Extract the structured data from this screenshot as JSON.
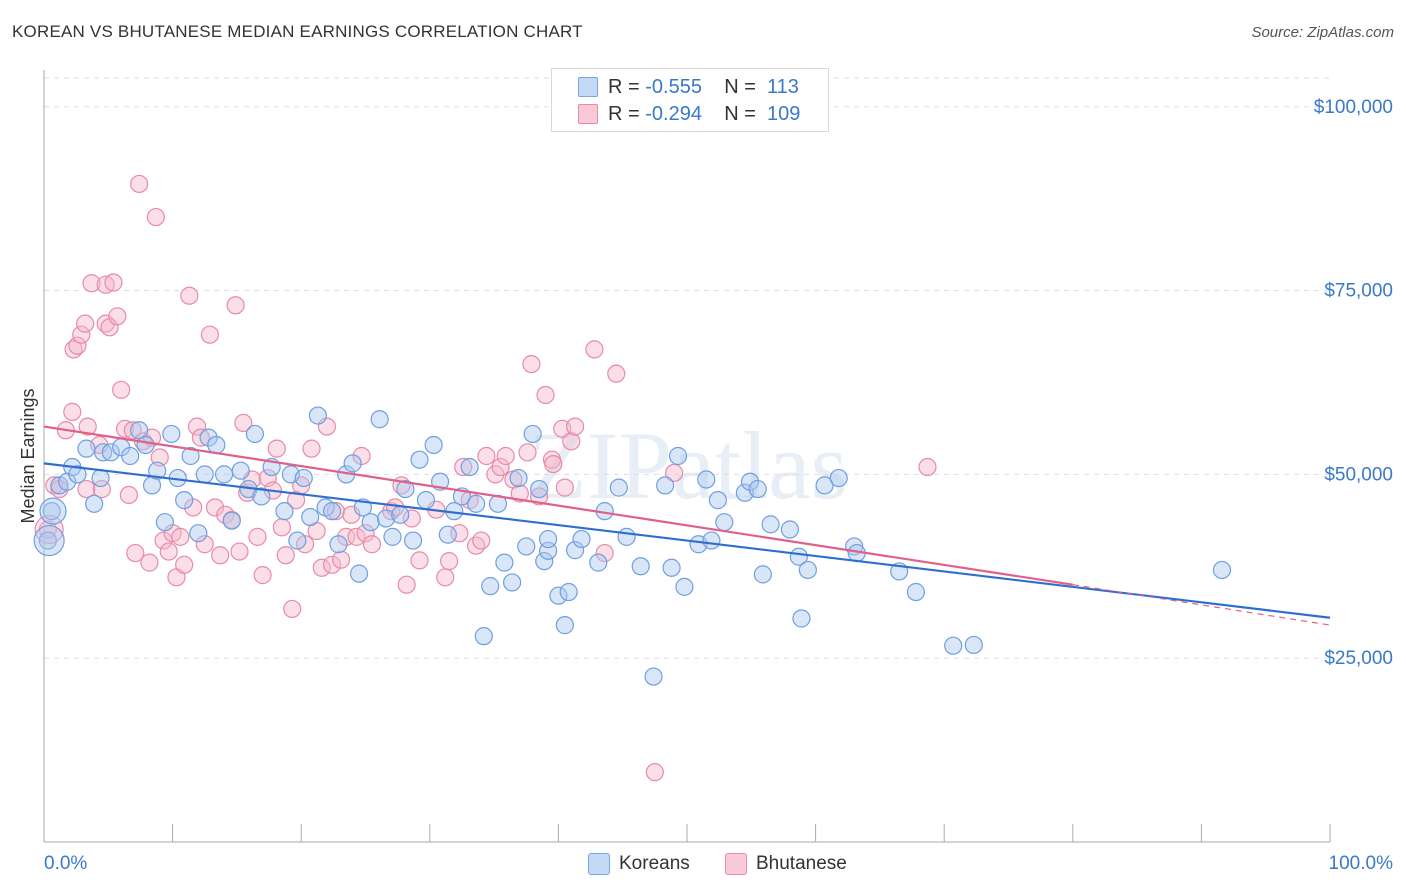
{
  "header": {
    "title": "KOREAN VS BHUTANESE MEDIAN EARNINGS CORRELATION CHART",
    "source": "Source: ZipAtlas.com"
  },
  "watermark": "ZIPatlas",
  "colors": {
    "koreans_fill": "#aac8f0",
    "koreans_stroke": "#6f9fe0",
    "koreans_line": "#2c6fd1",
    "bhutanese_fill": "#f5b8cc",
    "bhutanese_stroke": "#e88aa8",
    "bhutanese_line": "#e0608a",
    "axis_text": "#3a78c9",
    "grid": "#dddddd"
  },
  "legend": {
    "rows": [
      {
        "r_label": "R =",
        "r_value": "-0.555",
        "n_label": "N =",
        "n_value": "113"
      },
      {
        "r_label": "R =",
        "r_value": "-0.294",
        "n_label": "N =",
        "n_value": "109"
      }
    ]
  },
  "bottom_legend": {
    "koreans": "Koreans",
    "bhutanese": "Bhutanese"
  },
  "chart_data": {
    "type": "scatter",
    "title": "KOREAN VS BHUTANESE MEDIAN EARNINGS CORRELATION CHART",
    "xlabel": "",
    "ylabel": "Median Earnings",
    "xlim": [
      0,
      100
    ],
    "ylim": [
      0,
      105000
    ],
    "x_tick_labels": [
      "0.0%",
      "100.0%"
    ],
    "y_ticks": [
      25000,
      50000,
      75000,
      100000
    ],
    "y_tick_labels": [
      "$25,000",
      "$50,000",
      "$75,000",
      "$100,000"
    ],
    "grid": true,
    "legend_position": "top-center",
    "series": [
      {
        "name": "Koreans",
        "r": -0.555,
        "n": 113,
        "trend": {
          "x": [
            0,
            100
          ],
          "y": [
            51500,
            30500
          ]
        },
        "points": [
          [
            0.3,
            41000
          ],
          [
            0.6,
            45000
          ],
          [
            1.2,
            48500
          ],
          [
            1.8,
            49000
          ],
          [
            2.2,
            51000
          ],
          [
            2.6,
            50000
          ],
          [
            3.3,
            53500
          ],
          [
            3.9,
            46000
          ],
          [
            4.4,
            49500
          ],
          [
            4.6,
            53000
          ],
          [
            5.2,
            53000
          ],
          [
            6.0,
            53700
          ],
          [
            6.7,
            52500
          ],
          [
            7.4,
            56000
          ],
          [
            7.9,
            54000
          ],
          [
            8.4,
            48500
          ],
          [
            8.8,
            50500
          ],
          [
            9.4,
            43500
          ],
          [
            9.9,
            55500
          ],
          [
            10.4,
            49500
          ],
          [
            10.9,
            46500
          ],
          [
            11.4,
            52500
          ],
          [
            12.0,
            42000
          ],
          [
            12.5,
            50000
          ],
          [
            12.8,
            55000
          ],
          [
            13.4,
            54000
          ],
          [
            14.0,
            50000
          ],
          [
            14.6,
            43700
          ],
          [
            15.3,
            50500
          ],
          [
            15.9,
            48000
          ],
          [
            16.4,
            55500
          ],
          [
            16.9,
            47000
          ],
          [
            17.7,
            51000
          ],
          [
            18.7,
            45000
          ],
          [
            19.2,
            50000
          ],
          [
            19.7,
            41000
          ],
          [
            20.2,
            49500
          ],
          [
            20.7,
            44200
          ],
          [
            21.3,
            58000
          ],
          [
            21.9,
            45500
          ],
          [
            22.4,
            45000
          ],
          [
            22.9,
            40500
          ],
          [
            23.5,
            50000
          ],
          [
            24.0,
            51500
          ],
          [
            24.5,
            36500
          ],
          [
            24.8,
            45500
          ],
          [
            25.4,
            43500
          ],
          [
            26.1,
            57500
          ],
          [
            26.6,
            44000
          ],
          [
            27.1,
            41500
          ],
          [
            27.7,
            44500
          ],
          [
            28.1,
            48000
          ],
          [
            28.7,
            41000
          ],
          [
            29.2,
            52000
          ],
          [
            29.7,
            46500
          ],
          [
            30.3,
            54000
          ],
          [
            30.8,
            49000
          ],
          [
            31.4,
            41800
          ],
          [
            31.9,
            45000
          ],
          [
            32.5,
            47000
          ],
          [
            33.1,
            51000
          ],
          [
            33.6,
            46000
          ],
          [
            34.2,
            28000
          ],
          [
            34.7,
            34800
          ],
          [
            35.3,
            46000
          ],
          [
            35.8,
            38000
          ],
          [
            36.4,
            35300
          ],
          [
            36.9,
            49500
          ],
          [
            37.5,
            40200
          ],
          [
            38.0,
            55500
          ],
          [
            38.5,
            48000
          ],
          [
            38.9,
            38200
          ],
          [
            39.2,
            39600
          ],
          [
            39.2,
            41200
          ],
          [
            40.0,
            33500
          ],
          [
            40.5,
            29500
          ],
          [
            40.8,
            34000
          ],
          [
            41.3,
            39700
          ],
          [
            41.8,
            41200
          ],
          [
            43.1,
            38000
          ],
          [
            43.6,
            45000
          ],
          [
            44.7,
            48200
          ],
          [
            45.3,
            41500
          ],
          [
            46.4,
            37500
          ],
          [
            47.4,
            22500
          ],
          [
            48.3,
            48500
          ],
          [
            48.8,
            37300
          ],
          [
            49.3,
            52500
          ],
          [
            49.8,
            34700
          ],
          [
            50.9,
            40500
          ],
          [
            51.5,
            49300
          ],
          [
            51.9,
            41000
          ],
          [
            52.4,
            46500
          ],
          [
            52.9,
            43500
          ],
          [
            54.5,
            47500
          ],
          [
            54.9,
            49000
          ],
          [
            55.5,
            48000
          ],
          [
            55.9,
            36400
          ],
          [
            56.5,
            43200
          ],
          [
            58.0,
            42500
          ],
          [
            58.7,
            38800
          ],
          [
            58.9,
            30400
          ],
          [
            59.4,
            37000
          ],
          [
            60.7,
            48500
          ],
          [
            61.8,
            49500
          ],
          [
            63.0,
            40200
          ],
          [
            63.2,
            39300
          ],
          [
            66.5,
            36800
          ],
          [
            67.8,
            34000
          ],
          [
            70.7,
            26700
          ],
          [
            72.3,
            26800
          ],
          [
            91.6,
            37000
          ]
        ]
      },
      {
        "name": "Bhutanese",
        "r": -0.294,
        "n": 109,
        "trend": {
          "x": [
            0,
            80
          ],
          "y": [
            56500,
            35000
          ]
        },
        "trend_extension": {
          "x": [
            80,
            100
          ],
          "y": [
            35000,
            29500
          ]
        },
        "points": [
          [
            0.3,
            42500
          ],
          [
            0.8,
            48500
          ],
          [
            1.2,
            48000
          ],
          [
            1.7,
            56000
          ],
          [
            2.2,
            58500
          ],
          [
            2.3,
            67000
          ],
          [
            2.6,
            67500
          ],
          [
            2.9,
            69000
          ],
          [
            3.2,
            70500
          ],
          [
            3.3,
            48000
          ],
          [
            3.4,
            56500
          ],
          [
            3.7,
            76000
          ],
          [
            4.3,
            54000
          ],
          [
            4.5,
            48000
          ],
          [
            4.8,
            70500
          ],
          [
            4.8,
            75800
          ],
          [
            5.1,
            70000
          ],
          [
            5.4,
            76100
          ],
          [
            5.7,
            71500
          ],
          [
            6.0,
            61500
          ],
          [
            6.3,
            56200
          ],
          [
            6.6,
            47200
          ],
          [
            6.9,
            56000
          ],
          [
            7.1,
            39300
          ],
          [
            7.4,
            89500
          ],
          [
            7.7,
            54500
          ],
          [
            8.2,
            38000
          ],
          [
            8.4,
            55000
          ],
          [
            8.7,
            85000
          ],
          [
            9.0,
            52300
          ],
          [
            9.3,
            41000
          ],
          [
            9.7,
            39500
          ],
          [
            10.0,
            42000
          ],
          [
            10.3,
            36000
          ],
          [
            10.6,
            41500
          ],
          [
            10.9,
            37700
          ],
          [
            11.3,
            74300
          ],
          [
            11.6,
            45500
          ],
          [
            11.9,
            56500
          ],
          [
            12.2,
            55000
          ],
          [
            12.5,
            40500
          ],
          [
            12.9,
            69000
          ],
          [
            13.3,
            45500
          ],
          [
            13.7,
            39000
          ],
          [
            14.1,
            44500
          ],
          [
            14.6,
            43800
          ],
          [
            14.9,
            73000
          ],
          [
            15.2,
            39500
          ],
          [
            15.5,
            57000
          ],
          [
            15.8,
            47500
          ],
          [
            16.2,
            49300
          ],
          [
            16.6,
            41500
          ],
          [
            17.0,
            36300
          ],
          [
            17.4,
            49500
          ],
          [
            17.8,
            47800
          ],
          [
            18.1,
            53500
          ],
          [
            18.5,
            42800
          ],
          [
            18.8,
            39000
          ],
          [
            19.3,
            31700
          ],
          [
            19.6,
            46500
          ],
          [
            20.0,
            48500
          ],
          [
            20.3,
            40500
          ],
          [
            20.8,
            53500
          ],
          [
            21.2,
            42300
          ],
          [
            21.6,
            37300
          ],
          [
            22.0,
            56500
          ],
          [
            22.4,
            37700
          ],
          [
            22.7,
            45000
          ],
          [
            23.1,
            38400
          ],
          [
            23.5,
            41500
          ],
          [
            23.9,
            44500
          ],
          [
            24.3,
            41500
          ],
          [
            24.7,
            52500
          ],
          [
            25.0,
            42000
          ],
          [
            25.5,
            40500
          ],
          [
            27.0,
            45000
          ],
          [
            27.3,
            45500
          ],
          [
            27.8,
            48500
          ],
          [
            28.2,
            35000
          ],
          [
            28.6,
            44000
          ],
          [
            29.2,
            38300
          ],
          [
            30.5,
            45200
          ],
          [
            31.2,
            36000
          ],
          [
            31.5,
            38200
          ],
          [
            32.3,
            42000
          ],
          [
            32.6,
            51000
          ],
          [
            33.1,
            46500
          ],
          [
            33.6,
            40300
          ],
          [
            34.0,
            41000
          ],
          [
            34.4,
            52500
          ],
          [
            35.1,
            50000
          ],
          [
            35.5,
            51000
          ],
          [
            35.9,
            52500
          ],
          [
            36.5,
            49300
          ],
          [
            37.0,
            47400
          ],
          [
            37.6,
            53000
          ],
          [
            37.9,
            65000
          ],
          [
            38.5,
            47000
          ],
          [
            39.0,
            60800
          ],
          [
            39.5,
            52000
          ],
          [
            39.6,
            51400
          ],
          [
            40.3,
            56200
          ],
          [
            40.5,
            48200
          ],
          [
            41.0,
            54500
          ],
          [
            41.3,
            56500
          ],
          [
            42.8,
            67000
          ],
          [
            43.6,
            39300
          ],
          [
            44.5,
            63700
          ],
          [
            47.5,
            9500
          ],
          [
            49.0,
            50200
          ],
          [
            68.7,
            51000
          ]
        ]
      }
    ]
  }
}
